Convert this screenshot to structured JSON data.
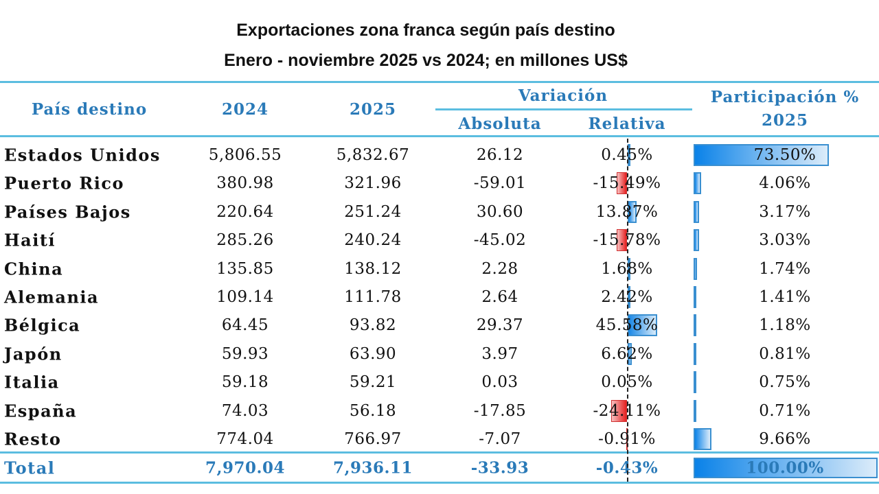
{
  "title": "Exportaciones zona franca según país destino",
  "subtitle": "Enero - noviembre 2025 vs 2024; en millones US$",
  "headers": {
    "country": "País destino",
    "y2024": "2024",
    "y2025": "2025",
    "variation": "Variación",
    "absolute": "Absoluta",
    "relative": "Relativa",
    "participation": "Participación %",
    "participation_year": "2025"
  },
  "colors": {
    "header": "#2a7ab8",
    "positive_bar": "#1a88e6",
    "negative_bar": "#e62020",
    "rule": "#5bbde0"
  },
  "rows": [
    {
      "country": "Estados Unidos",
      "y2024": "5,806.55",
      "y2025": "5,832.67",
      "abs": "26.12",
      "rel": "0.45%",
      "rel_value": 0.45,
      "share": "73.50%",
      "share_value": 73.5
    },
    {
      "country": "Puerto Rico",
      "y2024": "380.98",
      "y2025": "321.96",
      "abs": "-59.01",
      "rel": "-15.49%",
      "rel_value": -15.49,
      "share": "4.06%",
      "share_value": 4.06
    },
    {
      "country": "Países Bajos",
      "y2024": "220.64",
      "y2025": "251.24",
      "abs": "30.60",
      "rel": "13.87%",
      "rel_value": 13.87,
      "share": "3.17%",
      "share_value": 3.17
    },
    {
      "country": "Haití",
      "y2024": "285.26",
      "y2025": "240.24",
      "abs": "-45.02",
      "rel": "-15.78%",
      "rel_value": -15.78,
      "share": "3.03%",
      "share_value": 3.03
    },
    {
      "country": "China",
      "y2024": "135.85",
      "y2025": "138.12",
      "abs": "2.28",
      "rel": "1.68%",
      "rel_value": 1.68,
      "share": "1.74%",
      "share_value": 1.74
    },
    {
      "country": "Alemania",
      "y2024": "109.14",
      "y2025": "111.78",
      "abs": "2.64",
      "rel": "2.42%",
      "rel_value": 2.42,
      "share": "1.41%",
      "share_value": 1.41
    },
    {
      "country": "Bélgica",
      "y2024": "64.45",
      "y2025": "93.82",
      "abs": "29.37",
      "rel": "45.58%",
      "rel_value": 45.58,
      "share": "1.18%",
      "share_value": 1.18
    },
    {
      "country": "Japón",
      "y2024": "59.93",
      "y2025": "63.90",
      "abs": "3.97",
      "rel": "6.62%",
      "rel_value": 6.62,
      "share": "0.81%",
      "share_value": 0.81
    },
    {
      "country": "Italia",
      "y2024": "59.18",
      "y2025": "59.21",
      "abs": "0.03",
      "rel": "0.05%",
      "rel_value": 0.05,
      "share": "0.75%",
      "share_value": 0.75
    },
    {
      "country": "España",
      "y2024": "74.03",
      "y2025": "56.18",
      "abs": "-17.85",
      "rel": "-24.11%",
      "rel_value": -24.11,
      "share": "0.71%",
      "share_value": 0.71
    },
    {
      "country": "Resto",
      "y2024": "774.04",
      "y2025": "766.97",
      "abs": "-7.07",
      "rel": "-0.91%",
      "rel_value": -0.91,
      "share": "9.66%",
      "share_value": 9.66
    }
  ],
  "total": {
    "country": "Total",
    "y2024": "7,970.04",
    "y2025": "7,936.11",
    "abs": "-33.93",
    "rel": "-0.43%",
    "rel_value": -0.43,
    "share": "100.00%",
    "share_value": 100.0
  }
}
